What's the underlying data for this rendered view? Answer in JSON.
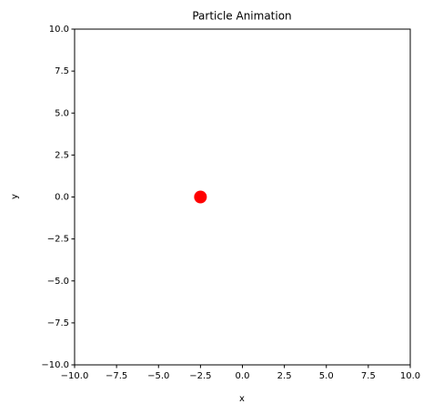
{
  "chart_data": {
    "type": "scatter",
    "title": "Particle Animation",
    "x_label": "x",
    "y_label": "y",
    "x": [
      -2.5
    ],
    "values": [
      0
    ],
    "color": "#ff0000",
    "xlim": [
      -10,
      10
    ],
    "ylim": [
      -10,
      10
    ],
    "xticks": [
      {
        "value": -10,
        "label": "−10.0"
      },
      {
        "value": -7.5,
        "label": "−7.5"
      },
      {
        "value": -5,
        "label": "−5.0"
      },
      {
        "value": -2.5,
        "label": "−2.5"
      },
      {
        "value": 0,
        "label": "0.0"
      },
      2.5,
      {
        "value": 5,
        "label": "5.0"
      },
      7.5,
      {
        "value": 10,
        "label": "10.0"
      }
    ],
    "yticks": [
      {
        "value": -10,
        "label": "−10.0"
      },
      {
        "value": -7.5,
        "label": "−7.5"
      },
      {
        "value": -5,
        "label": "−5.0"
      },
      {
        "value": -2.5,
        "label": "−2.5"
      },
      {
        "value": 0,
        "label": "0.0"
      },
      2.5,
      {
        "value": 5,
        "label": "5.0"
      },
      7.5,
      {
        "value": 10,
        "label": "10.0"
      }
    ],
    "grid": false
  }
}
